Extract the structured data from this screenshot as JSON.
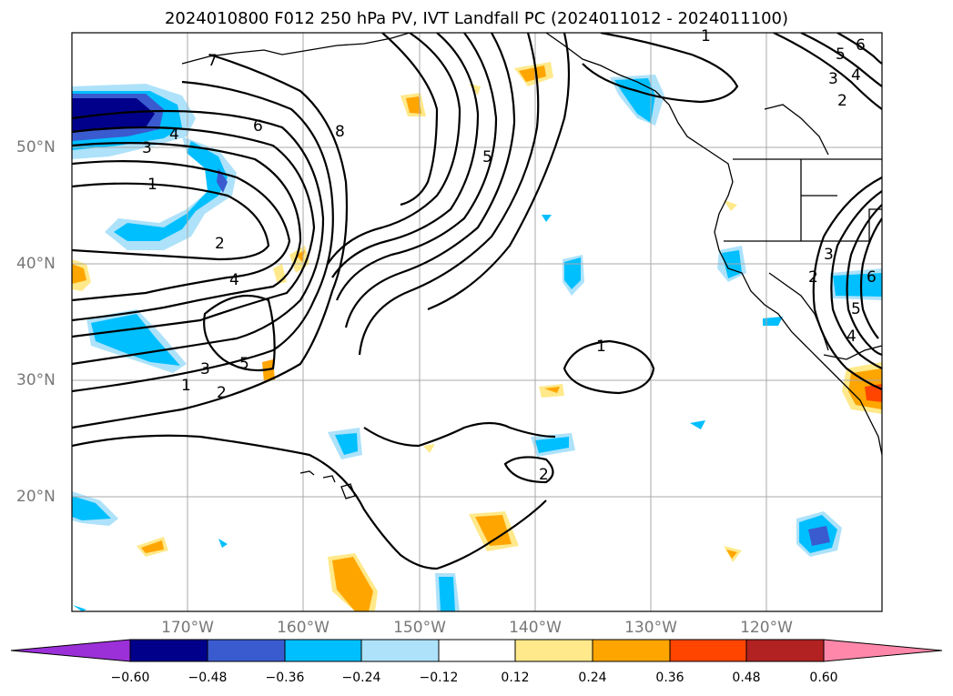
{
  "title": "2024010800 F012 250 hPa PV, IVT Landfall PC (2024011012 - 2024011100)",
  "map": {
    "latitude_labels": [
      "50°N",
      "40°N",
      "30°N",
      "20°N"
    ],
    "longitude_labels": [
      "170°W",
      "160°W",
      "150°W",
      "140°W",
      "130°W",
      "120°W"
    ],
    "contour_labels": [
      "1",
      "2",
      "3",
      "4",
      "5",
      "6",
      "7",
      "8",
      "1",
      "2",
      "3",
      "4",
      "5",
      "1",
      "2",
      "3",
      "4",
      "5",
      "6",
      "2",
      "1",
      "2",
      "3",
      "4",
      "5",
      "6"
    ]
  },
  "colorbar": {
    "tick_labels": [
      "−0.60",
      "−0.48",
      "−0.36",
      "−0.24",
      "−0.12",
      "0.12",
      "0.24",
      "0.36",
      "0.48",
      "0.60"
    ],
    "colors": [
      "#9b30d8",
      "#00008b",
      "#3a5bd0",
      "#00bfff",
      "#ade2fa",
      "#ffffff",
      "#ffe98a",
      "#ffa500",
      "#ff4500",
      "#b22222",
      "#ff88aa"
    ]
  }
}
